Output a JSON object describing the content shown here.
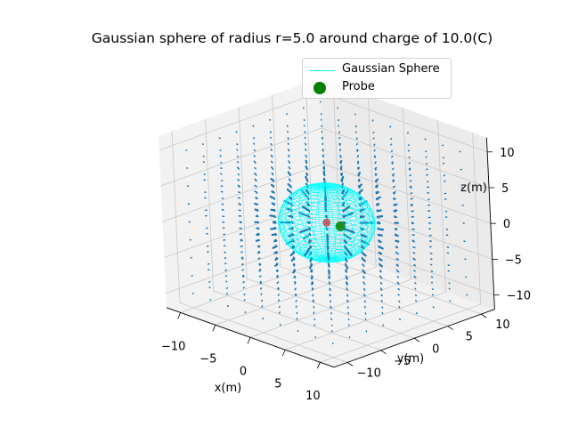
{
  "chart_data": {
    "type": "quiver3d",
    "title": "Gaussian sphere of radius r=5.0 around charge of 10.0(C)",
    "xlabel": "x(m)",
    "ylabel": "y(m)",
    "zlabel": "z(m)",
    "xlim": [
      -12,
      12
    ],
    "ylim": [
      -12,
      12
    ],
    "zlim": [
      -12,
      12
    ],
    "xticks": [
      -10,
      -5,
      0,
      5,
      10
    ],
    "yticks": [
      -10,
      -5,
      0,
      5,
      10
    ],
    "zticks": [
      -10,
      -5,
      0,
      5,
      10
    ],
    "xtick_labels": [
      "−10",
      "−5",
      "0",
      "5",
      "10"
    ],
    "ytick_labels": [
      "−10",
      "−5",
      "0",
      "5",
      "10"
    ],
    "ztick_labels": [
      "−10",
      "−5",
      "0",
      "5",
      "10"
    ],
    "grid": true,
    "charge": {
      "value": 10.0,
      "unit": "C",
      "position": [
        0,
        0,
        0
      ],
      "color": "#d62728"
    },
    "gaussian_sphere": {
      "radius": 5.0,
      "center": [
        0,
        0,
        0
      ],
      "color": "#00ffff"
    },
    "probe": {
      "position": [
        1.0,
        1.0,
        -0.5
      ],
      "color": "#008000"
    },
    "field_grid": {
      "min": -10,
      "max": 10,
      "step": 2.5
    },
    "vector_color": "#1f77b4",
    "legend": {
      "position": "upper-right",
      "entries": [
        {
          "label": "Gaussian Sphere",
          "marker": "line",
          "color": "#00ffff"
        },
        {
          "label": "Probe",
          "marker": "circle",
          "color": "#008000"
        }
      ]
    }
  }
}
